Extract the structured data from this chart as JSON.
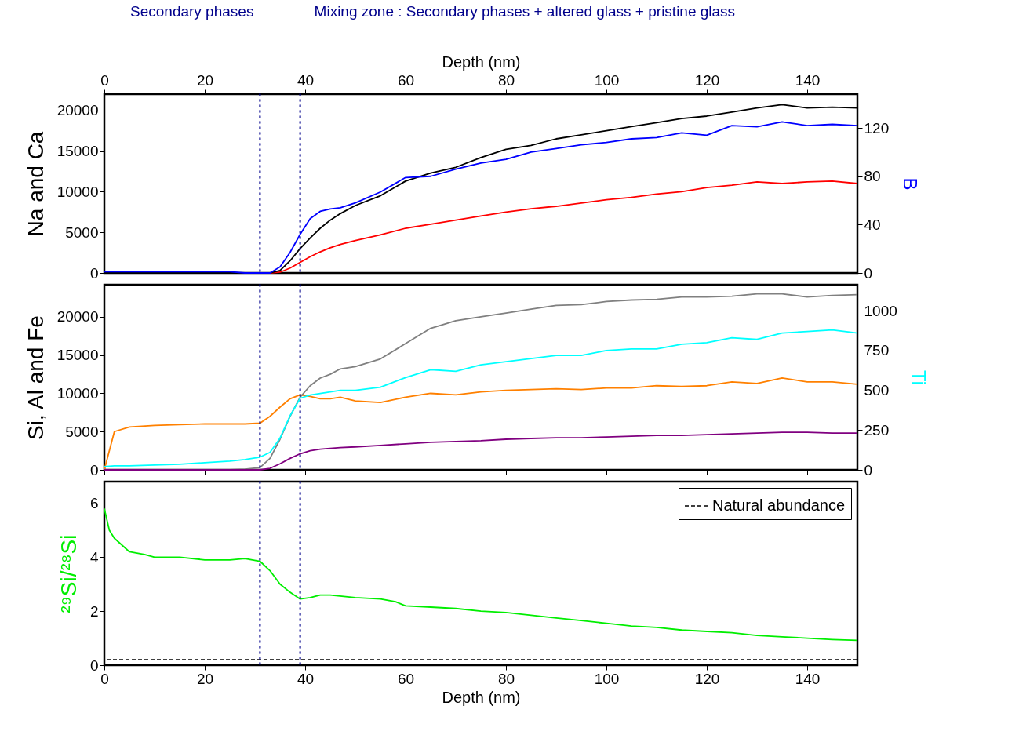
{
  "chart_data": [
    {
      "type": "line",
      "xlabel": "Depth (nm)",
      "xlim": [
        0,
        150
      ],
      "xticks": [
        0,
        20,
        40,
        60,
        80,
        100,
        120,
        140
      ],
      "ylabel": "Na and Ca",
      "y2label": "B",
      "ylim": [
        0,
        22000
      ],
      "yticks": [
        0,
        5000,
        10000,
        15000,
        20000
      ],
      "y2lim": [
        0,
        148
      ],
      "y2ticks": [
        0,
        40,
        80,
        120
      ],
      "x": [
        0,
        5,
        10,
        15,
        20,
        25,
        28,
        31,
        33,
        35,
        37,
        39,
        41,
        43,
        45,
        47,
        50,
        55,
        60,
        65,
        70,
        75,
        80,
        85,
        90,
        95,
        100,
        105,
        110,
        115,
        120,
        125,
        130,
        135,
        140,
        145,
        150
      ],
      "series": [
        {
          "color": "#ff0000",
          "values": [
            null,
            null,
            null,
            null,
            null,
            null,
            null,
            null,
            0,
            100,
            600,
            1300,
            2000,
            2600,
            3100,
            3500,
            4000,
            4700,
            5500,
            6000,
            6500,
            7000,
            7500,
            7900,
            8200,
            8600,
            9000,
            9300,
            9700,
            10000,
            10500,
            10800,
            11200,
            11000,
            11200,
            11300,
            11000
          ]
        },
        {
          "color": "#000000",
          "values": [
            null,
            null,
            null,
            null,
            null,
            null,
            null,
            null,
            0,
            300,
            1500,
            3000,
            4300,
            5500,
            6500,
            7300,
            8300,
            9500,
            11300,
            12300,
            13000,
            14200,
            15200,
            15700,
            16500,
            17000,
            17500,
            18000,
            18500,
            19000,
            19300,
            19800,
            20300,
            20700,
            20300,
            20400,
            20300
          ]
        },
        {
          "color": "#0000ff",
          "axis": "y2",
          "values": [
            1,
            1,
            1,
            1,
            1,
            1,
            0,
            0,
            0,
            5,
            17,
            32,
            45,
            51,
            53,
            54,
            58,
            67,
            79,
            80,
            86,
            91,
            94,
            100,
            103,
            106,
            108,
            111,
            112,
            116,
            114,
            122,
            121,
            125,
            122,
            123,
            122
          ]
        }
      ],
      "ref_lines": [
        {
          "axis": "x",
          "value": 31,
          "color": "#00008b",
          "line_style": "dotted"
        },
        {
          "axis": "x",
          "value": 39,
          "color": "#00008b",
          "line_style": "dotted"
        }
      ],
      "annotations": [
        "Secondary phases",
        "Mixing zone : Secondary phases + altered glass + pristine glass"
      ]
    },
    {
      "type": "line",
      "xlim": [
        0,
        150
      ],
      "xticks": [
        0,
        20,
        40,
        60,
        80,
        100,
        120,
        140
      ],
      "tick_labels": "y",
      "ylabel": "Si, Al and Fe",
      "y2label": "Ti",
      "ylim": [
        0,
        24200
      ],
      "yticks": [
        0,
        5000,
        10000,
        15000,
        20000
      ],
      "y2lim": [
        0,
        1164
      ],
      "y2ticks": [
        0,
        250,
        500,
        750,
        1000
      ],
      "x": [
        0,
        2,
        5,
        10,
        15,
        20,
        25,
        28,
        31,
        33,
        35,
        37,
        39,
        41,
        43,
        45,
        47,
        50,
        55,
        60,
        65,
        70,
        75,
        80,
        85,
        90,
        95,
        100,
        105,
        110,
        115,
        120,
        125,
        130,
        135,
        140,
        145,
        150
      ],
      "series": [
        {
          "color": "#ff8000",
          "values": [
            0,
            5000,
            5600,
            5800,
            5900,
            6000,
            6000,
            6000,
            6100,
            7000,
            8200,
            9300,
            9800,
            9600,
            9300,
            9300,
            9500,
            9000,
            8800,
            9500,
            10000,
            9800,
            10200,
            10400,
            10500,
            10600,
            10500,
            10700,
            10700,
            11000,
            10900,
            11000,
            11500,
            11300,
            12000,
            11500,
            11500,
            11200
          ]
        },
        {
          "color": "#808080",
          "values": [
            0,
            0,
            0,
            0,
            0,
            0,
            0,
            100,
            300,
            1500,
            4000,
            7000,
            9500,
            11000,
            12000,
            12500,
            13200,
            13500,
            14500,
            16500,
            18500,
            19500,
            20000,
            20500,
            21000,
            21500,
            21600,
            22000,
            22200,
            22300,
            22600,
            22600,
            22700,
            23000,
            23000,
            22600,
            22800,
            22900
          ]
        },
        {
          "color": "#800080",
          "values": [
            0,
            0,
            0,
            0,
            0,
            0,
            0,
            0,
            0,
            200,
            800,
            1500,
            2100,
            2500,
            2700,
            2800,
            2900,
            3000,
            3200,
            3400,
            3600,
            3700,
            3800,
            4000,
            4100,
            4200,
            4200,
            4300,
            4400,
            4500,
            4500,
            4600,
            4700,
            4800,
            4900,
            4900,
            4800,
            4800
          ]
        },
        {
          "color": "#00ffff",
          "axis": "y2",
          "values": [
            20,
            25,
            25,
            30,
            35,
            45,
            55,
            65,
            80,
            110,
            200,
            340,
            450,
            470,
            480,
            490,
            500,
            500,
            520,
            580,
            630,
            620,
            660,
            680,
            700,
            720,
            720,
            750,
            760,
            760,
            790,
            800,
            830,
            820,
            860,
            870,
            880,
            860
          ]
        }
      ],
      "ref_lines": [
        {
          "axis": "x",
          "value": 31,
          "color": "#00008b",
          "line_style": "dotted"
        },
        {
          "axis": "x",
          "value": 39,
          "color": "#00008b",
          "line_style": "dotted"
        }
      ]
    },
    {
      "type": "line",
      "xlabel": "Depth (nm)",
      "xlim": [
        0,
        150
      ],
      "xticks": [
        0,
        20,
        40,
        60,
        80,
        100,
        120,
        140
      ],
      "ylabel": "²⁹Si/²⁸Si",
      "ylim": [
        0,
        6.8
      ],
      "yticks": [
        0,
        2,
        4,
        6
      ],
      "legend": "top right",
      "x": [
        0,
        1,
        2,
        5,
        8,
        10,
        15,
        20,
        25,
        28,
        31,
        33,
        35,
        37,
        39,
        41,
        43,
        45,
        50,
        55,
        58,
        60,
        65,
        70,
        75,
        80,
        85,
        90,
        95,
        100,
        105,
        110,
        115,
        120,
        125,
        130,
        135,
        140,
        145,
        150
      ],
      "series": [
        {
          "color": "#00ee00",
          "values": [
            5.8,
            5.0,
            4.7,
            4.2,
            4.1,
            4.0,
            4.0,
            3.9,
            3.9,
            3.95,
            3.85,
            3.5,
            3.0,
            2.7,
            2.45,
            2.5,
            2.6,
            2.6,
            2.5,
            2.45,
            2.35,
            2.2,
            2.15,
            2.1,
            2.0,
            1.95,
            1.85,
            1.75,
            1.65,
            1.55,
            1.45,
            1.4,
            1.3,
            1.25,
            1.2,
            1.1,
            1.05,
            1.0,
            0.95,
            0.92
          ]
        }
      ],
      "ref_lines": [
        {
          "axis": "x",
          "value": 31,
          "color": "#00008b",
          "line_style": "dotted"
        },
        {
          "axis": "x",
          "value": 39,
          "color": "#00008b",
          "line_style": "dotted"
        },
        {
          "axis": "y",
          "value": 0.2,
          "label": "Natural abundance",
          "color": "#000000",
          "line_style": "dashed"
        }
      ]
    }
  ]
}
